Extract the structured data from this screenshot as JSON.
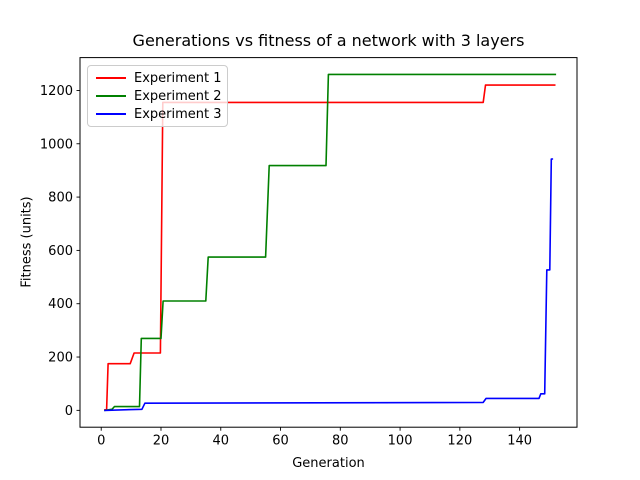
{
  "chart_data": {
    "type": "line",
    "title": "Generations vs fitness of a network with 3 layers",
    "xlabel": "Generation",
    "ylabel": "Fitness (units)",
    "xlim": [
      -7.1,
      159.2
    ],
    "ylim": [
      -63.2,
      1323.2
    ],
    "xticks": [
      0,
      20,
      40,
      60,
      80,
      100,
      120,
      140
    ],
    "yticks": [
      0,
      200,
      400,
      600,
      800,
      1000,
      1200
    ],
    "grid": false,
    "legend_position": "upper-left",
    "background_color": "#ffffff",
    "axis_color": "#000000",
    "series": [
      {
        "name": "Experiment 1",
        "color": "#ff0000",
        "points": [
          [
            1,
            2
          ],
          [
            1.8,
            2
          ],
          [
            2.3,
            175
          ],
          [
            9.7,
            175
          ],
          [
            11,
            215
          ],
          [
            19.8,
            215
          ],
          [
            20.6,
            1155
          ],
          [
            127.8,
            1155
          ],
          [
            128.6,
            1220
          ],
          [
            152,
            1220
          ]
        ]
      },
      {
        "name": "Experiment 2",
        "color": "#008000",
        "points": [
          [
            1,
            0
          ],
          [
            3.6,
            4
          ],
          [
            4.4,
            14
          ],
          [
            12.8,
            14
          ],
          [
            13.4,
            270
          ],
          [
            20,
            270
          ],
          [
            20.7,
            410
          ],
          [
            35,
            410
          ],
          [
            35.8,
            575
          ],
          [
            55,
            575
          ],
          [
            56.2,
            918
          ],
          [
            75.2,
            918
          ],
          [
            76,
            1260
          ],
          [
            152.2,
            1260
          ]
        ]
      },
      {
        "name": "Experiment 3",
        "color": "#0000ff",
        "points": [
          [
            1,
            0
          ],
          [
            13.6,
            4
          ],
          [
            14.6,
            27
          ],
          [
            127.8,
            30
          ],
          [
            128.8,
            45
          ],
          [
            146.5,
            45
          ],
          [
            147.1,
            62
          ],
          [
            148.4,
            62
          ],
          [
            149.1,
            527
          ],
          [
            150.1,
            527
          ],
          [
            150.6,
            943
          ],
          [
            151.2,
            943
          ]
        ]
      }
    ]
  }
}
